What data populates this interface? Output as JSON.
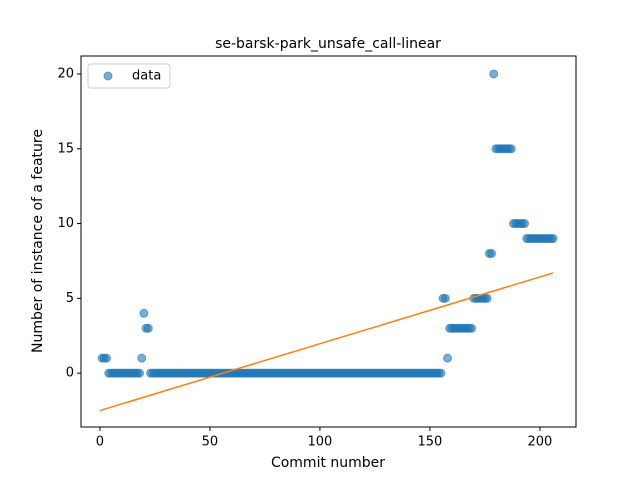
{
  "chart_data": {
    "type": "scatter",
    "title": "se-barsk-park_unsafe_call-linear",
    "xlabel": "Commit number",
    "ylabel": "Number of instance of a feature",
    "xlim": [
      -8.6,
      216.4
    ],
    "xticks": [
      0,
      50,
      100,
      150,
      200
    ],
    "ylim": [
      -3.6,
      21.2
    ],
    "yticks": [
      0,
      5,
      10,
      15,
      20
    ],
    "legend": "upper left",
    "series": [
      {
        "name": "data",
        "mode": "markers",
        "color": "#1f77b4",
        "x": [
          1,
          2,
          3,
          4,
          5,
          6,
          7,
          8,
          9,
          10,
          11,
          12,
          13,
          14,
          15,
          16,
          17,
          18,
          19,
          20,
          21,
          22,
          23,
          24,
          25,
          26,
          27,
          28,
          29,
          30,
          31,
          32,
          33,
          34,
          35,
          36,
          37,
          38,
          39,
          40,
          41,
          42,
          43,
          44,
          45,
          46,
          47,
          48,
          49,
          50,
          51,
          52,
          53,
          54,
          55,
          56,
          57,
          58,
          59,
          60,
          61,
          62,
          63,
          64,
          65,
          66,
          67,
          68,
          69,
          70,
          71,
          72,
          73,
          74,
          75,
          76,
          77,
          78,
          79,
          80,
          81,
          82,
          83,
          84,
          85,
          86,
          87,
          88,
          89,
          90,
          91,
          92,
          93,
          94,
          95,
          96,
          97,
          98,
          99,
          100,
          101,
          102,
          103,
          104,
          105,
          106,
          107,
          108,
          109,
          110,
          111,
          112,
          113,
          114,
          115,
          116,
          117,
          118,
          119,
          120,
          121,
          122,
          123,
          124,
          125,
          126,
          127,
          128,
          129,
          130,
          131,
          132,
          133,
          134,
          135,
          136,
          137,
          138,
          139,
          140,
          141,
          142,
          143,
          144,
          145,
          146,
          147,
          148,
          149,
          150,
          151,
          152,
          153,
          154,
          155,
          156,
          157,
          158,
          159,
          160,
          161,
          162,
          163,
          164,
          165,
          166,
          167,
          168,
          169,
          170,
          171,
          172,
          173,
          174,
          175,
          176,
          177,
          178,
          179,
          180,
          181,
          182,
          183,
          184,
          185,
          186,
          187,
          188,
          189,
          190,
          191,
          192,
          193,
          194,
          195,
          196,
          197,
          198,
          199,
          200,
          201,
          202,
          203,
          204,
          205,
          206
        ],
        "values": [
          1,
          1,
          1,
          0,
          0,
          0,
          0,
          0,
          0,
          0,
          0,
          0,
          0,
          0,
          0,
          0,
          0,
          0,
          1,
          4,
          3,
          3,
          0,
          0,
          0,
          0,
          0,
          0,
          0,
          0,
          0,
          0,
          0,
          0,
          0,
          0,
          0,
          0,
          0,
          0,
          0,
          0,
          0,
          0,
          0,
          0,
          0,
          0,
          0,
          0,
          0,
          0,
          0,
          0,
          0,
          0,
          0,
          0,
          0,
          0,
          0,
          0,
          0,
          0,
          0,
          0,
          0,
          0,
          0,
          0,
          0,
          0,
          0,
          0,
          0,
          0,
          0,
          0,
          0,
          0,
          0,
          0,
          0,
          0,
          0,
          0,
          0,
          0,
          0,
          0,
          0,
          0,
          0,
          0,
          0,
          0,
          0,
          0,
          0,
          0,
          0,
          0,
          0,
          0,
          0,
          0,
          0,
          0,
          0,
          0,
          0,
          0,
          0,
          0,
          0,
          0,
          0,
          0,
          0,
          0,
          0,
          0,
          0,
          0,
          0,
          0,
          0,
          0,
          0,
          0,
          0,
          0,
          0,
          0,
          0,
          0,
          0,
          0,
          0,
          0,
          0,
          0,
          0,
          0,
          0,
          0,
          0,
          0,
          0,
          0,
          0,
          0,
          0,
          0,
          0,
          5,
          5,
          1,
          3,
          3,
          3,
          3,
          3,
          3,
          3,
          3,
          3,
          3,
          3,
          5,
          5,
          5,
          5,
          5,
          5,
          5,
          8,
          8,
          20,
          15,
          15,
          15,
          15,
          15,
          15,
          15,
          15,
          10,
          10,
          10,
          10,
          10,
          10,
          9,
          9,
          9,
          9,
          9,
          9,
          9,
          9,
          9,
          9,
          9,
          9,
          9
        ]
      },
      {
        "mode": "line",
        "color": "#ff7f0e",
        "x": [
          0,
          206
        ],
        "values": [
          -2.5,
          6.7
        ]
      }
    ]
  }
}
